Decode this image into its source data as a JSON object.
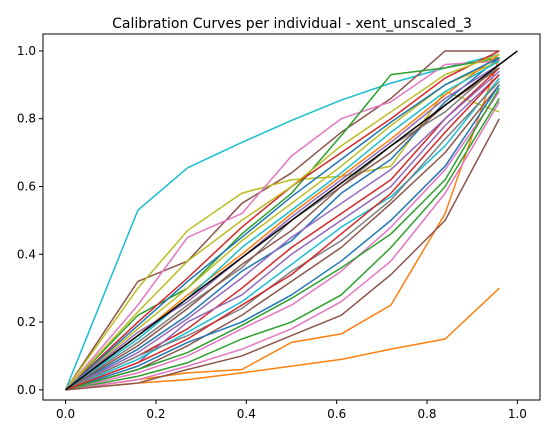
{
  "chart_data": {
    "type": "line",
    "title": "Calibration Curves per individual - xent_unscaled_3",
    "xlabel": "",
    "ylabel": "",
    "xlim": [
      -0.05,
      1.05
    ],
    "ylim": [
      -0.03,
      1.05
    ],
    "xticks": [
      "0.0",
      "0.2",
      "0.4",
      "0.6",
      "0.8",
      "1.0"
    ],
    "yticks": [
      "0.0",
      "0.2",
      "0.4",
      "0.6",
      "0.8",
      "1.0"
    ],
    "grid": false,
    "legend": "none",
    "palette": [
      "#1f77b4",
      "#ff7f0e",
      "#2ca02c",
      "#d62728",
      "#9467bd",
      "#8c564b",
      "#e377c2",
      "#7f7f7f",
      "#bcbd22",
      "#17becf"
    ],
    "reference": {
      "color": "#000000",
      "x": [
        0.0,
        1.0
      ],
      "y": [
        0.0,
        1.0
      ]
    },
    "x": [
      0.0,
      0.16,
      0.27,
      0.39,
      0.5,
      0.61,
      0.72,
      0.84,
      0.96
    ],
    "series": [
      {
        "color": "#17becf",
        "values": [
          0.0,
          0.53,
          0.655,
          0.73,
          0.795,
          0.855,
          0.905,
          0.95,
          0.99
        ]
      },
      {
        "color": "#ff7f0e",
        "values": [
          0.0,
          0.02,
          0.03,
          0.05,
          0.07,
          0.09,
          0.12,
          0.15,
          0.3
        ]
      },
      {
        "color": "#ff7f0e",
        "values": [
          0.0,
          0.03,
          0.05,
          0.06,
          0.14,
          0.165,
          0.25,
          0.52,
          0.98
        ]
      },
      {
        "color": "#8c564b",
        "values": [
          0.0,
          0.32,
          0.38,
          0.55,
          0.64,
          0.76,
          0.86,
          1.0,
          1.0
        ]
      },
      {
        "color": "#bcbd22",
        "values": [
          0.0,
          0.3,
          0.47,
          0.58,
          0.62,
          0.63,
          0.66,
          0.88,
          0.82
        ]
      },
      {
        "color": "#e377c2",
        "values": [
          0.0,
          0.25,
          0.45,
          0.52,
          0.69,
          0.8,
          0.85,
          0.96,
          0.97
        ]
      },
      {
        "color": "#2ca02c",
        "values": [
          0.0,
          0.22,
          0.3,
          0.46,
          0.58,
          0.75,
          0.93,
          0.95,
          0.98
        ]
      },
      {
        "color": "#1f77b4",
        "values": [
          0.0,
          0.12,
          0.22,
          0.35,
          0.44,
          0.58,
          0.68,
          0.85,
          0.98
        ]
      },
      {
        "color": "#d62728",
        "values": [
          0.0,
          0.1,
          0.18,
          0.3,
          0.42,
          0.52,
          0.62,
          0.8,
          0.95
        ]
      },
      {
        "color": "#9467bd",
        "values": [
          0.0,
          0.08,
          0.2,
          0.28,
          0.4,
          0.5,
          0.6,
          0.78,
          0.93
        ]
      },
      {
        "color": "#8c564b",
        "values": [
          0.0,
          0.06,
          0.13,
          0.22,
          0.32,
          0.42,
          0.55,
          0.7,
          0.9
        ]
      },
      {
        "color": "#e377c2",
        "values": [
          0.0,
          0.05,
          0.1,
          0.18,
          0.25,
          0.35,
          0.48,
          0.65,
          0.88
        ]
      },
      {
        "color": "#7f7f7f",
        "values": [
          0.0,
          0.14,
          0.25,
          0.36,
          0.5,
          0.6,
          0.72,
          0.82,
          0.96
        ]
      },
      {
        "color": "#bcbd22",
        "values": [
          0.0,
          0.18,
          0.3,
          0.44,
          0.55,
          0.66,
          0.78,
          0.9,
          0.97
        ]
      },
      {
        "color": "#17becf",
        "values": [
          0.0,
          0.09,
          0.17,
          0.26,
          0.37,
          0.48,
          0.57,
          0.72,
          0.92
        ]
      },
      {
        "color": "#1f77b4",
        "values": [
          0.0,
          0.07,
          0.14,
          0.2,
          0.28,
          0.38,
          0.5,
          0.66,
          0.9
        ]
      },
      {
        "color": "#ff7f0e",
        "values": [
          0.0,
          0.16,
          0.28,
          0.4,
          0.52,
          0.63,
          0.74,
          0.87,
          0.99
        ]
      },
      {
        "color": "#2ca02c",
        "values": [
          0.0,
          0.04,
          0.08,
          0.15,
          0.2,
          0.28,
          0.42,
          0.6,
          0.86
        ]
      },
      {
        "color": "#d62728",
        "values": [
          0.0,
          0.2,
          0.33,
          0.48,
          0.6,
          0.7,
          0.8,
          0.92,
          1.0
        ]
      },
      {
        "color": "#9467bd",
        "values": [
          0.0,
          0.11,
          0.21,
          0.33,
          0.45,
          0.55,
          0.65,
          0.8,
          0.94
        ]
      },
      {
        "color": "#8c564b",
        "values": [
          0.0,
          0.13,
          0.24,
          0.37,
          0.47,
          0.6,
          0.7,
          0.84,
          0.95
        ]
      },
      {
        "color": "#e377c2",
        "values": [
          0.0,
          0.03,
          0.07,
          0.12,
          0.18,
          0.26,
          0.38,
          0.58,
          0.85
        ]
      },
      {
        "color": "#7f7f7f",
        "values": [
          0.0,
          0.1,
          0.16,
          0.24,
          0.35,
          0.44,
          0.56,
          0.74,
          0.91
        ]
      },
      {
        "color": "#bcbd22",
        "values": [
          0.0,
          0.23,
          0.38,
          0.5,
          0.6,
          0.72,
          0.82,
          0.93,
          0.99
        ]
      },
      {
        "color": "#17becf",
        "values": [
          0.0,
          0.15,
          0.27,
          0.42,
          0.53,
          0.64,
          0.76,
          0.88,
          0.97
        ]
      },
      {
        "color": "#1f77b4",
        "values": [
          0.0,
          0.19,
          0.32,
          0.45,
          0.57,
          0.68,
          0.79,
          0.9,
          0.98
        ]
      },
      {
        "color": "#2ca02c",
        "values": [
          0.0,
          0.06,
          0.11,
          0.19,
          0.27,
          0.36,
          0.46,
          0.62,
          0.89
        ]
      },
      {
        "color": "#d62728",
        "values": [
          0.0,
          0.08,
          0.15,
          0.25,
          0.34,
          0.46,
          0.58,
          0.76,
          0.93
        ]
      },
      {
        "color": "#8c564b",
        "values": [
          0.0,
          0.02,
          0.06,
          0.1,
          0.16,
          0.22,
          0.34,
          0.5,
          0.8
        ]
      },
      {
        "color": "#9467bd",
        "values": [
          0.0,
          0.17,
          0.26,
          0.39,
          0.51,
          0.62,
          0.73,
          0.86,
          0.96
        ]
      }
    ]
  }
}
